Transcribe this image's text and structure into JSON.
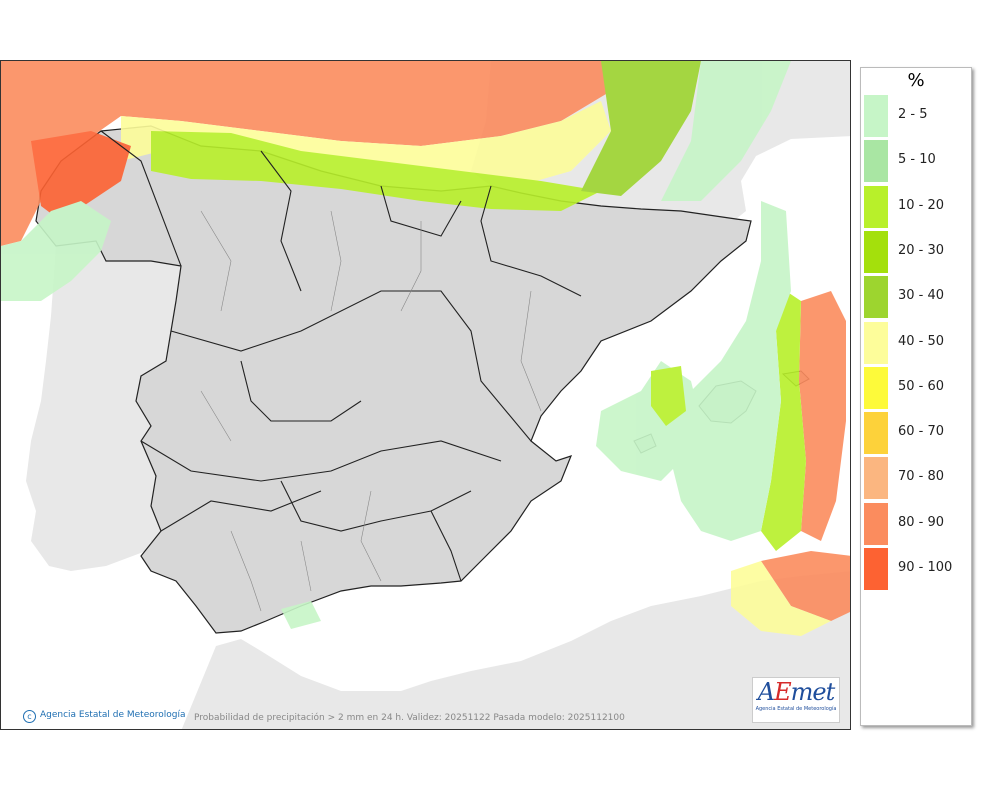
{
  "legend": {
    "title": "%",
    "classes": [
      {
        "label": "2 - 5",
        "color": "#c6f5c7"
      },
      {
        "label": "5 - 10",
        "color": "#a9e6a3"
      },
      {
        "label": "10 - 20",
        "color": "#b8f02a"
      },
      {
        "label": "20 - 30",
        "color": "#a4e00c"
      },
      {
        "label": "30 - 40",
        "color": "#9dd52f"
      },
      {
        "label": "40 - 50",
        "color": "#fdfd9a"
      },
      {
        "label": "50 - 60",
        "color": "#fdfa3a"
      },
      {
        "label": "60 - 70",
        "color": "#fdd23a"
      },
      {
        "label": "70 - 80",
        "color": "#fbb680"
      },
      {
        "label": "80 - 90",
        "color": "#fb8c5e"
      },
      {
        "label": "90 - 100",
        "color": "#fd6232"
      }
    ]
  },
  "footer": {
    "credit": "Agencia Estatal de Meteorología",
    "caption": "Probabilidad de precipitación > 2 mm en 24 h. Validez: 20251122 Pasada modelo: 2025112100"
  },
  "logo": {
    "wordmark_a": "A",
    "wordmark_e": "E",
    "wordmark_m": "met",
    "subtitle": "Agencia Estatal de Meteorología"
  },
  "colors": {
    "land": "#d7d7d7",
    "foreign_land": "#e8e8e8",
    "sea": "#ffffff",
    "border": "#222222"
  }
}
